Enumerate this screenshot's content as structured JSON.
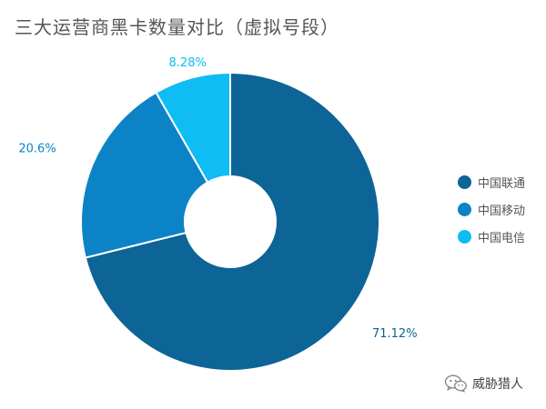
{
  "title": "三大运营商黑卡数量对比（虚拟号段）",
  "chart_data": {
    "type": "pie",
    "donut": true,
    "title": "三大运营商黑卡数量对比（虚拟号段）",
    "categories": [
      "中国联通",
      "中国移动",
      "中国电信"
    ],
    "values": [
      71.12,
      20.6,
      8.28
    ],
    "data_labels": [
      "71.12%",
      "20.6%",
      "8.28%"
    ],
    "colors": [
      "#0d6496",
      "#0c83c6",
      "#0fbcf3"
    ],
    "legend_position": "right"
  },
  "watermark": {
    "icon": "wechat-icon",
    "text": "威胁猎人"
  }
}
